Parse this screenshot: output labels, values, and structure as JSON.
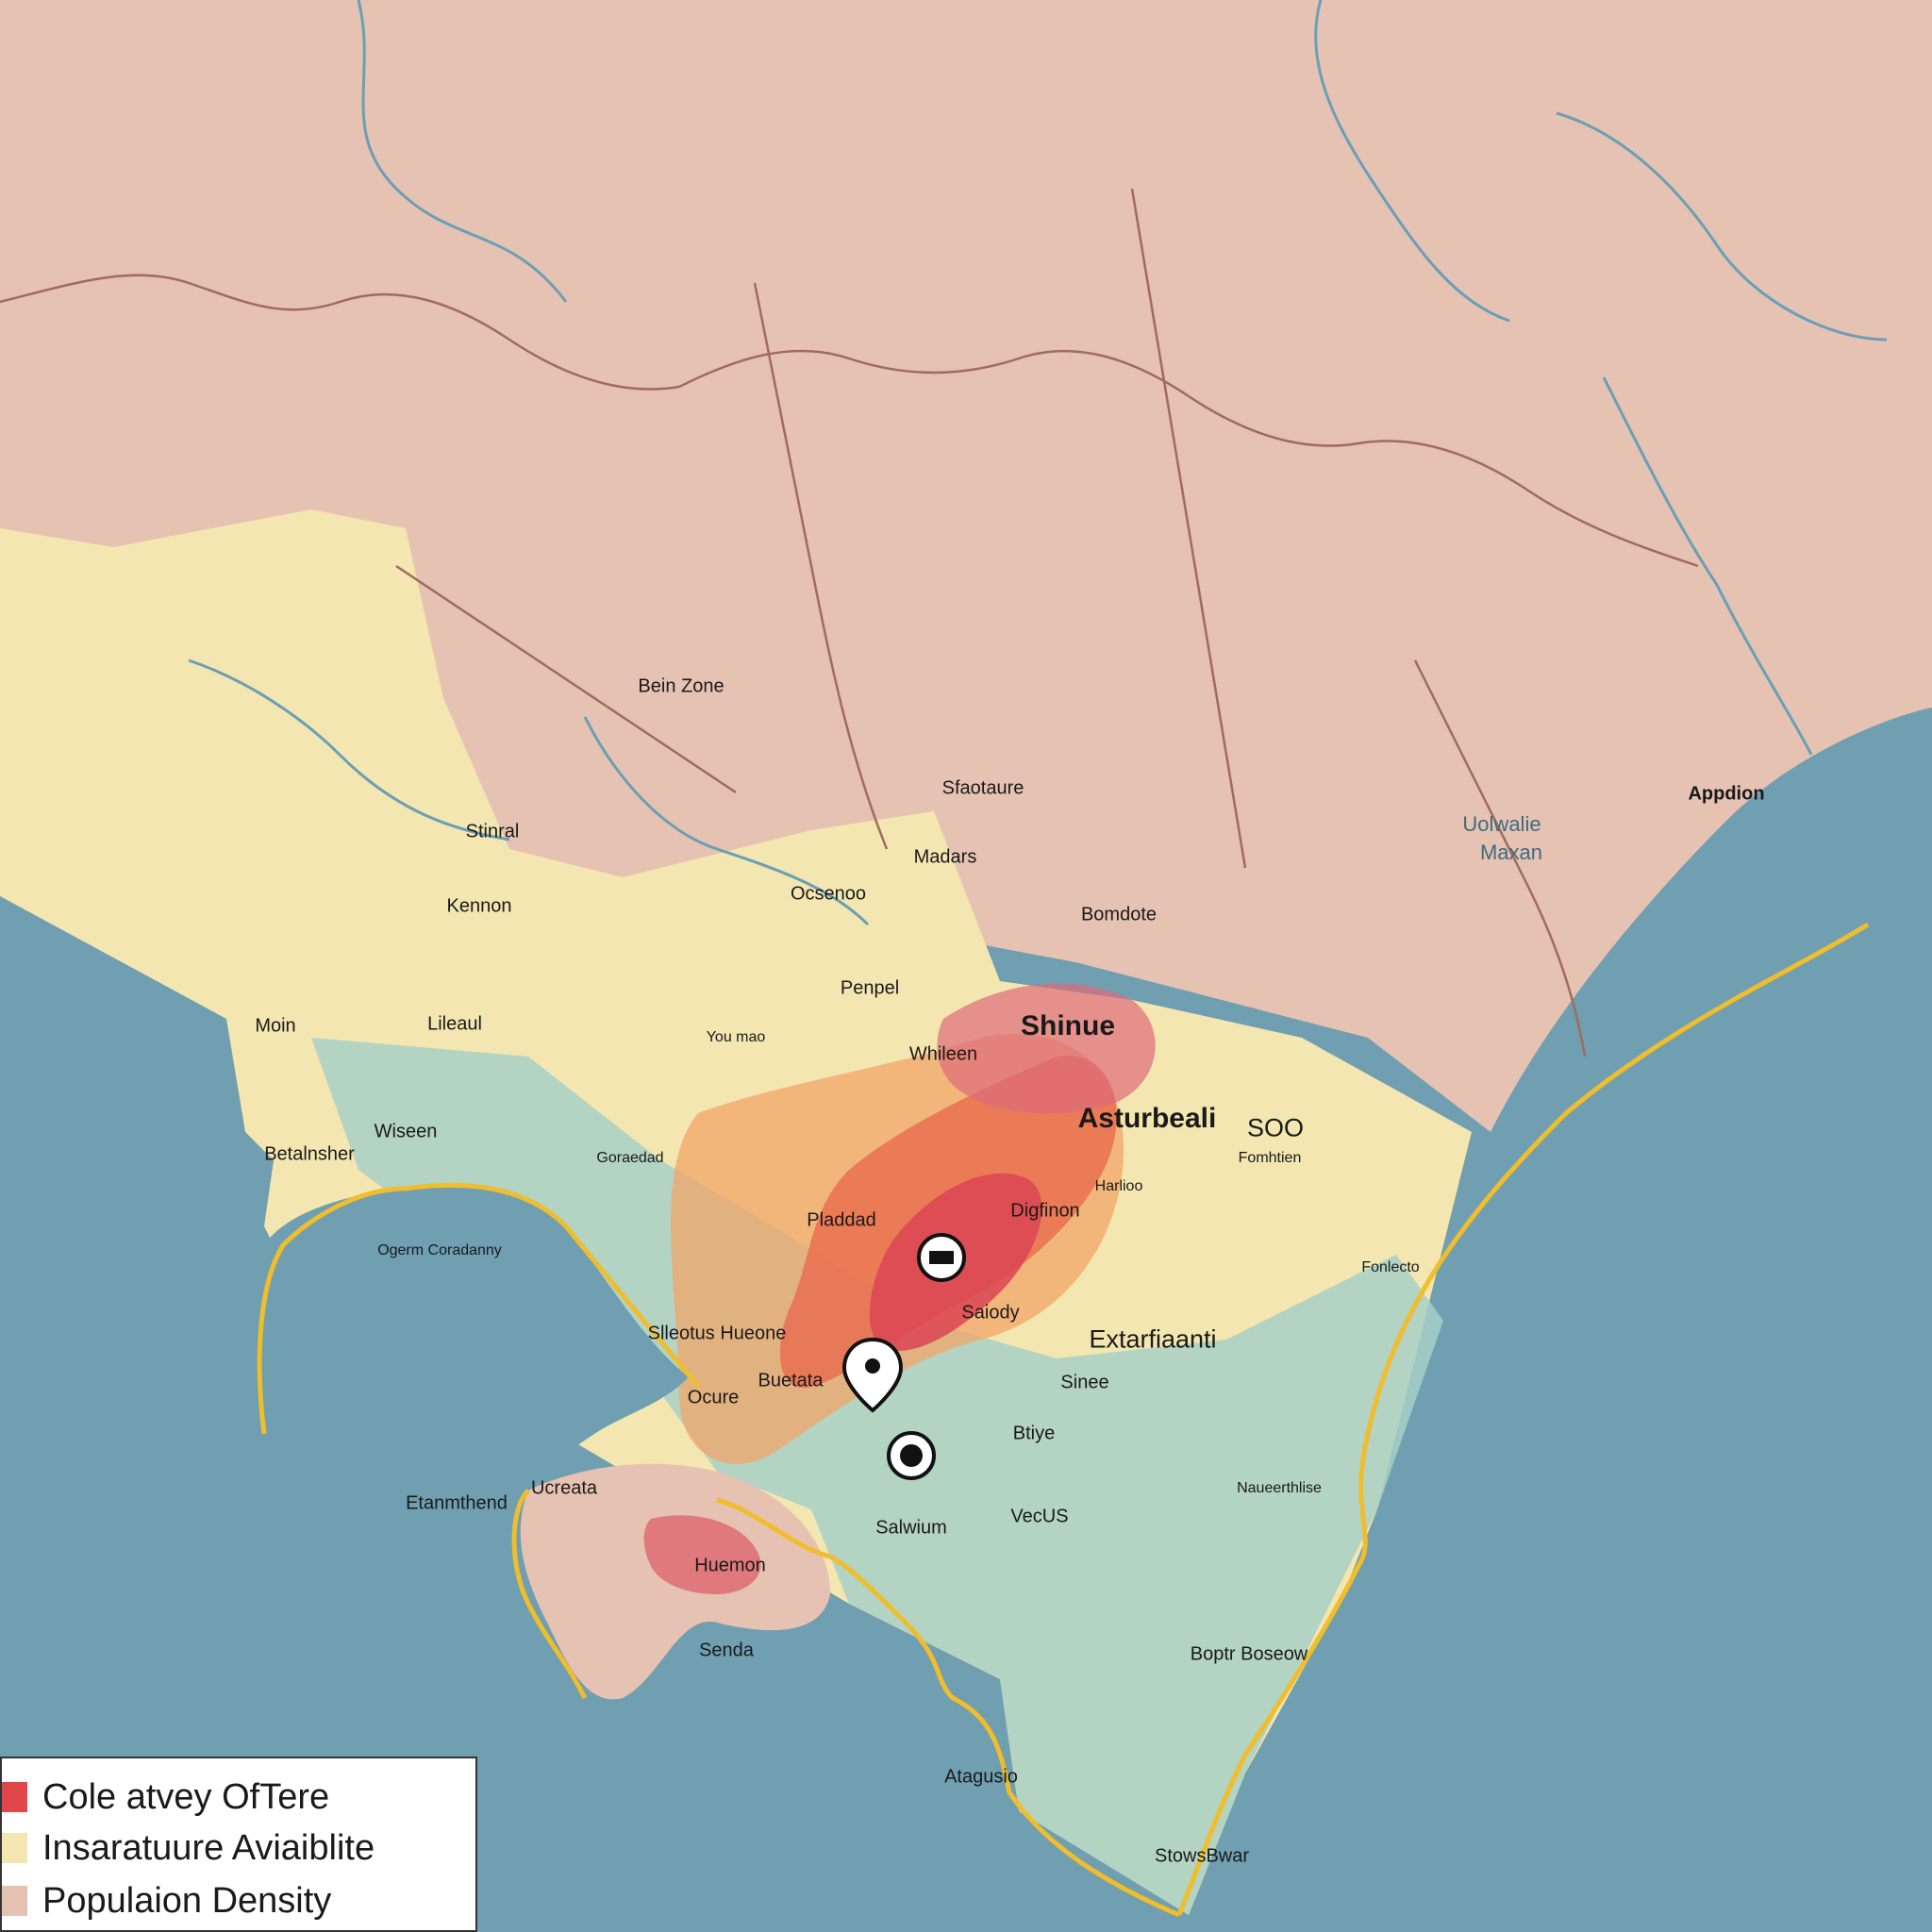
{
  "map": {
    "colors": {
      "sea": "#6f9fb0",
      "land": "#e6c2b3",
      "infrastructure": "#f3e6b0",
      "coverage": "#e0464a",
      "low_density": "#a7cfc7",
      "coastline_boundary": "#f0bd2c",
      "river": "#6a9fb6",
      "border": "#a06c5e"
    },
    "labels": [
      {
        "id": "bein-zone",
        "text": "Bein Zone"
      },
      {
        "id": "sfaotaure",
        "text": "Sfaotaure"
      },
      {
        "id": "madars",
        "text": "Madars"
      },
      {
        "id": "appdion",
        "text": "Appdion"
      },
      {
        "id": "uolwalie",
        "text": "Uolwalie"
      },
      {
        "id": "maxan",
        "text": "Maxan"
      },
      {
        "id": "stinral",
        "text": "Stinral"
      },
      {
        "id": "kennon",
        "text": "Kennon"
      },
      {
        "id": "ocsenoo",
        "text": "Ocsenoo"
      },
      {
        "id": "bomdote",
        "text": "Bomdote"
      },
      {
        "id": "penpel",
        "text": "Penpel"
      },
      {
        "id": "moin",
        "text": "Moin"
      },
      {
        "id": "lileaul",
        "text": "Lileaul"
      },
      {
        "id": "you-mao",
        "text": "You mao"
      },
      {
        "id": "shinue",
        "text": "Shinue"
      },
      {
        "id": "whileen",
        "text": "Whileen"
      },
      {
        "id": "astrurbeali",
        "text": "Asturbeali"
      },
      {
        "id": "soo",
        "text": "SOO"
      },
      {
        "id": "fomhtien",
        "text": "Fomhtien"
      },
      {
        "id": "wiseen",
        "text": "Wiseen"
      },
      {
        "id": "betalnsher",
        "text": "Betalnsher"
      },
      {
        "id": "goraedad",
        "text": "Goraedad"
      },
      {
        "id": "harlioo",
        "text": "Harlioo"
      },
      {
        "id": "ogerm-coradanny",
        "text": "Ogerm Coradanny"
      },
      {
        "id": "digfinon",
        "text": "Digfinon"
      },
      {
        "id": "pladdad",
        "text": "Pladdad"
      },
      {
        "id": "fonlecto",
        "text": "Fonlecto"
      },
      {
        "id": "saiody",
        "text": "Saiody"
      },
      {
        "id": "slleotus-hueone",
        "text": "Slleotus Hueone"
      },
      {
        "id": "extarfiaanti",
        "text": "Extarfiaanti"
      },
      {
        "id": "buetata",
        "text": "Buetata"
      },
      {
        "id": "ocure",
        "text": "Ocure"
      },
      {
        "id": "sinee",
        "text": "Sinee"
      },
      {
        "id": "btiye",
        "text": "Btiye"
      },
      {
        "id": "etanmthend",
        "text": "Etanmthend"
      },
      {
        "id": "ucreata",
        "text": "Ucreata"
      },
      {
        "id": "naueerthlise",
        "text": "Naueerthlise"
      },
      {
        "id": "salwium",
        "text": "Salwium"
      },
      {
        "id": "vecus",
        "text": "VecUS"
      },
      {
        "id": "huemon",
        "text": "Huemon"
      },
      {
        "id": "senda",
        "text": "Senda"
      },
      {
        "id": "boptr-boseow",
        "text": "Boptr Boseow"
      },
      {
        "id": "atagusio",
        "text": "Atagusio"
      },
      {
        "id": "stows-bwar",
        "text": "StowsBwar"
      }
    ]
  },
  "legend": {
    "items": [
      {
        "label": "Cole atvey OfTere",
        "color": "#e0464a"
      },
      {
        "label": "Insaratuure Aviaiblite",
        "color": "#f3e6b0"
      },
      {
        "label": "Populaion Density",
        "color": "#e6c2b3"
      }
    ]
  }
}
